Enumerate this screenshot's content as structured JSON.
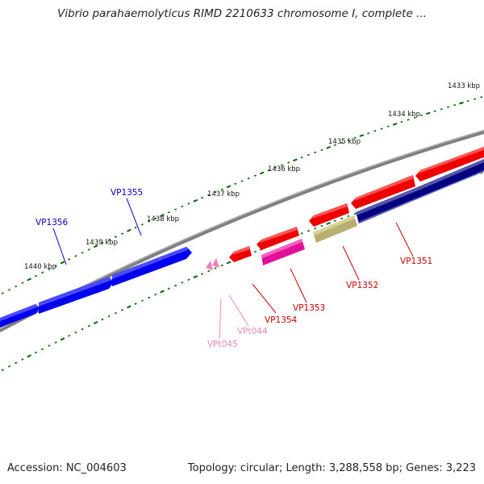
{
  "title": "Vibrio parahaemolyticus RIMD 2210633 chromosome I, complete ...",
  "footer": {
    "accession": "Accession: NC_004603",
    "summary": "Topology: circular; Length: 3,288,558 bp; Genes: 3,223"
  },
  "scale_labels": [
    "1433 kbp",
    "1434 kbp",
    "1435 kbp",
    "1436 kbp",
    "1437 kbp",
    "1438 kbp",
    "1439 kbp",
    "1440 kbp"
  ],
  "gene_labels": [
    {
      "name": "VP1356",
      "color": "#0000cc"
    },
    {
      "name": "VP1355",
      "color": "#0000cc"
    },
    {
      "name": "VP1354",
      "color": "#cc0000"
    },
    {
      "name": "VP1353",
      "color": "#cc0000"
    },
    {
      "name": "VP1352",
      "color": "#cc0000"
    },
    {
      "name": "VP1351",
      "color": "#cc0000"
    },
    {
      "name": "VPt044",
      "color": "#ee88bb"
    },
    {
      "name": "VPt045",
      "color": "#ee88bb"
    }
  ],
  "colors": {
    "gene_blue": "#0000ee",
    "gene_red": "#ee0000",
    "gene_magenta": "#e0109a",
    "gene_olive": "#b8b070",
    "gene_navy": "#000080",
    "gene_navy_light": "#6666bb",
    "trna_pink": "#f080b8",
    "backbone": "#808080",
    "tick_green": "#006600"
  }
}
